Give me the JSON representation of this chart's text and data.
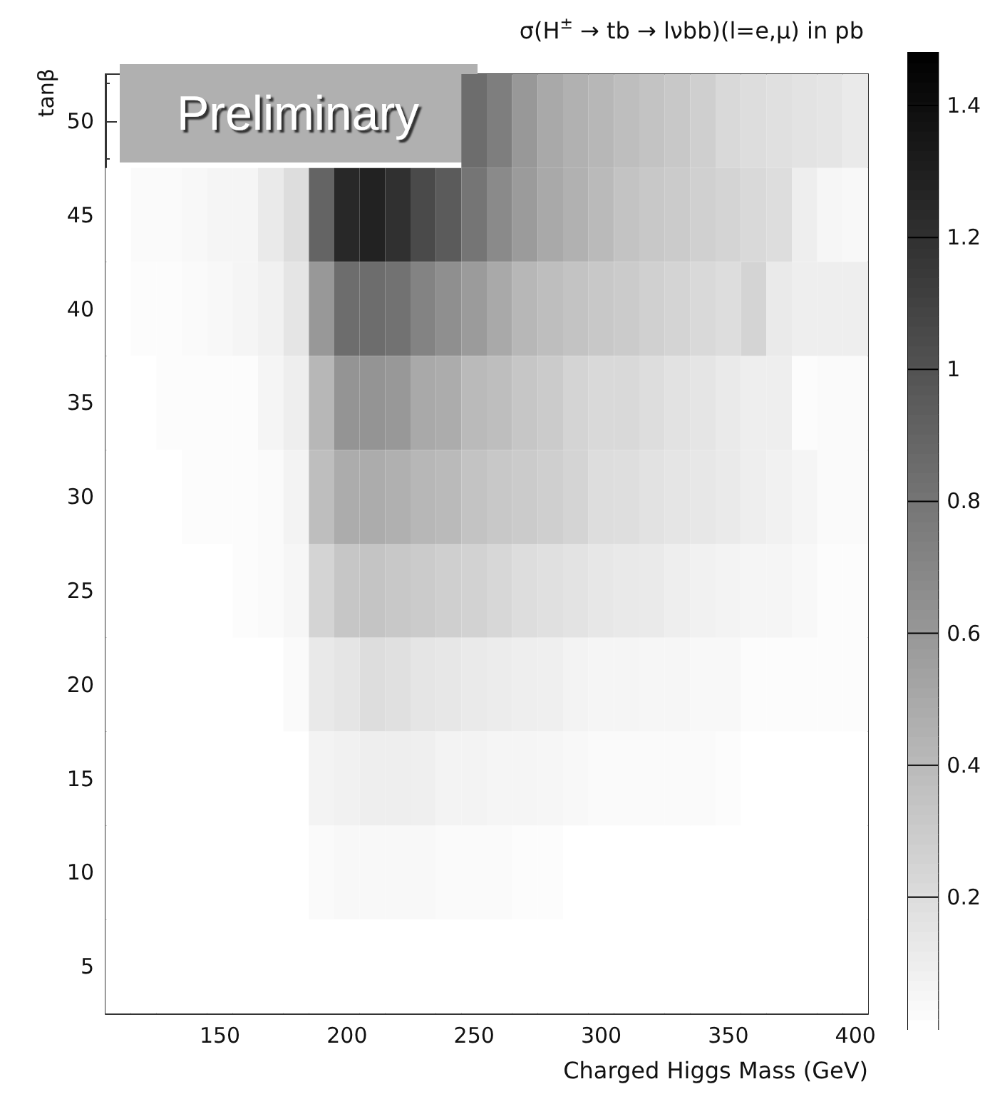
{
  "chart_data": {
    "type": "heatmap",
    "title": "σ(H$^{±}$ → tb → lνbb)(l=e,μ) in pb",
    "xlabel": "Charged Higgs Mass (GeV)",
    "ylabel": "tanβ",
    "annotations": [
      "Preliminary"
    ],
    "x": [
      110,
      120,
      130,
      140,
      150,
      160,
      170,
      180,
      190,
      200,
      210,
      220,
      230,
      240,
      250,
      260,
      270,
      280,
      290,
      300,
      310,
      320,
      330,
      340,
      350,
      360,
      370,
      380,
      390,
      400
    ],
    "y": [
      50,
      45,
      40,
      35,
      30,
      25,
      20,
      15,
      10,
      5
    ],
    "xlim": [
      105,
      405
    ],
    "xticks": [
      150,
      200,
      250,
      300,
      350,
      400
    ],
    "ylim": [
      2.5,
      52.5
    ],
    "yticks": [
      5,
      10,
      15,
      20,
      25,
      30,
      35,
      40,
      45,
      50
    ],
    "clim": [
      0,
      1.48
    ],
    "cticks": [
      0.2,
      0.4,
      0.6,
      0.8,
      1,
      1.2,
      1.4
    ],
    "cells": [
      [
        null,
        null,
        null,
        null,
        null,
        null,
        null,
        null,
        null,
        null,
        null,
        null,
        null,
        null,
        0.85,
        0.75,
        0.6,
        0.5,
        0.45,
        0.42,
        0.38,
        0.35,
        0.32,
        0.28,
        0.22,
        0.2,
        0.18,
        0.16,
        0.15,
        0.12
      ],
      [
        0,
        0.03,
        0.03,
        0.04,
        0.06,
        0.06,
        0.12,
        0.2,
        0.9,
        1.25,
        1.28,
        1.2,
        1.05,
        0.95,
        0.8,
        0.68,
        0.58,
        0.5,
        0.45,
        0.4,
        0.35,
        0.32,
        0.3,
        0.27,
        0.25,
        0.22,
        0.2,
        0.1,
        0.05,
        0.04
      ],
      [
        0,
        0.02,
        0.02,
        0.03,
        0.04,
        0.06,
        0.08,
        0.15,
        0.6,
        0.85,
        0.85,
        0.82,
        0.72,
        0.65,
        0.58,
        0.5,
        0.42,
        0.38,
        0.35,
        0.32,
        0.3,
        0.27,
        0.25,
        0.22,
        0.2,
        0.25,
        0.12,
        0.1,
        0.1,
        0.1
      ],
      [
        0,
        0,
        0.02,
        0.02,
        0.02,
        0.02,
        0.06,
        0.1,
        0.42,
        0.62,
        0.62,
        0.6,
        0.5,
        0.48,
        0.4,
        0.38,
        0.33,
        0.3,
        0.25,
        0.22,
        0.22,
        0.2,
        0.17,
        0.15,
        0.12,
        0.1,
        0.1,
        0.02,
        0.03,
        0.03
      ],
      [
        0,
        0,
        0,
        0.02,
        0.02,
        0.02,
        0.03,
        0.07,
        0.38,
        0.48,
        0.48,
        0.46,
        0.42,
        0.4,
        0.35,
        0.32,
        0.3,
        0.28,
        0.25,
        0.2,
        0.19,
        0.17,
        0.15,
        0.14,
        0.12,
        0.1,
        0.08,
        0.06,
        0.03,
        0.03
      ],
      [
        0,
        0,
        0,
        0,
        0,
        0.02,
        0.03,
        0.05,
        0.25,
        0.33,
        0.34,
        0.32,
        0.3,
        0.28,
        0.26,
        0.23,
        0.2,
        0.18,
        0.16,
        0.14,
        0.13,
        0.12,
        0.1,
        0.08,
        0.07,
        0.06,
        0.06,
        0.04,
        0.02,
        0.02
      ],
      [
        0,
        0,
        0,
        0,
        0,
        0,
        0,
        0.03,
        0.13,
        0.15,
        0.2,
        0.18,
        0.15,
        0.14,
        0.12,
        0.11,
        0.1,
        0.09,
        0.07,
        0.06,
        0.06,
        0.05,
        0.05,
        0.04,
        0.04,
        0.02,
        0.02,
        0.02,
        0.02,
        0.02
      ],
      [
        0,
        0,
        0,
        0,
        0,
        0,
        0,
        0,
        0.07,
        0.08,
        0.1,
        0.1,
        0.09,
        0.07,
        0.07,
        0.06,
        0.06,
        0.05,
        0.04,
        0.03,
        0.03,
        0.03,
        0.03,
        0.03,
        0.02,
        0,
        0,
        0,
        0,
        0
      ],
      [
        0,
        0,
        0,
        0,
        0,
        0,
        0,
        0,
        0.03,
        0.04,
        0.04,
        0.04,
        0.04,
        0.03,
        0.03,
        0.03,
        0.02,
        0.02,
        0,
        0,
        0,
        0,
        0,
        0,
        0,
        0,
        0,
        0,
        0,
        0
      ],
      [
        0,
        0,
        0,
        0,
        0,
        0,
        0,
        0,
        0,
        0,
        0,
        0,
        0,
        0,
        0,
        0,
        0,
        0,
        0,
        0,
        0,
        0,
        0,
        0,
        0,
        0,
        0,
        0,
        0,
        0
      ]
    ]
  }
}
